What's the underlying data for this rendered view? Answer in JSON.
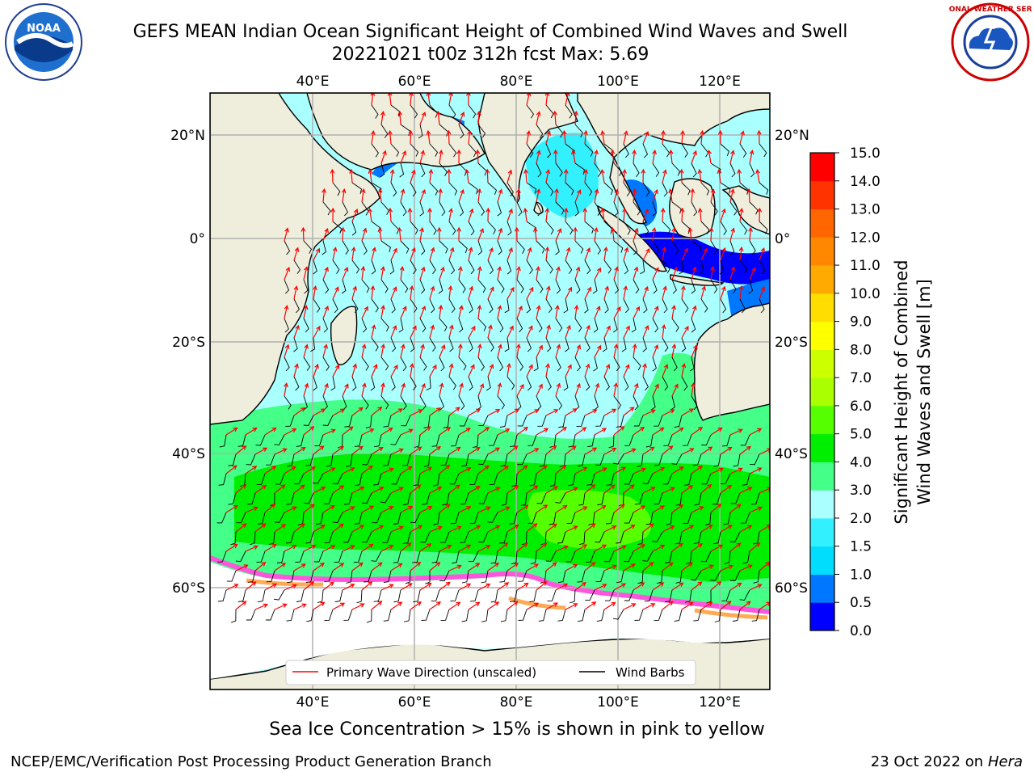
{
  "header": {
    "title_line1": "GEFS MEAN Indian Ocean Significant Height of Combined Wind Waves and Swell",
    "title_line2": "20221021 t00z 312h fcst   Max: 5.69"
  },
  "logos": {
    "left_text": "NOAA",
    "right_text": "NATIONAL WEATHER SERVICE"
  },
  "map": {
    "lon_labels": [
      "40°E",
      "60°E",
      "80°E",
      "100°E",
      "120°E"
    ],
    "lat_labels": [
      "20°N",
      "0°",
      "20°S",
      "40°S",
      "60°S"
    ],
    "colors": {
      "land": "#efeedd",
      "ice": "#ffffff",
      "grid": "#b0b0b0"
    }
  },
  "legend": {
    "wave_label": "Primary Wave Direction (unscaled)",
    "wind_label": "Wind Barbs",
    "wave_color": "#ff0000",
    "wind_color": "#000000"
  },
  "colorbar": {
    "label_line1": "Significant Height of Combined",
    "label_line2": "Wind Waves and Swell [m]",
    "ticks": [
      "0.0",
      "0.5",
      "1.0",
      "1.5",
      "2.0",
      "3.0",
      "4.0",
      "5.0",
      "6.0",
      "7.0",
      "8.0",
      "9.0",
      "10.0",
      "11.0",
      "12.0",
      "13.0",
      "14.0",
      "15.0"
    ],
    "colors": [
      "#0000ff",
      "#0077ff",
      "#00ddff",
      "#33f0ff",
      "#aaffff",
      "#44ff88",
      "#00ee00",
      "#55ff00",
      "#aaff00",
      "#ccff00",
      "#ffff00",
      "#ffdd00",
      "#ffaa00",
      "#ff8800",
      "#ff6600",
      "#ff3300",
      "#ff0000"
    ]
  },
  "sea_ice_note": "Sea Ice Concentration > 15% is shown in pink to yellow",
  "footer": {
    "left": "NCEP/EMC/Verification Post Processing Product Generation Branch",
    "right_prefix": "23 Oct 2022 on ",
    "right_machine": "Hera"
  }
}
